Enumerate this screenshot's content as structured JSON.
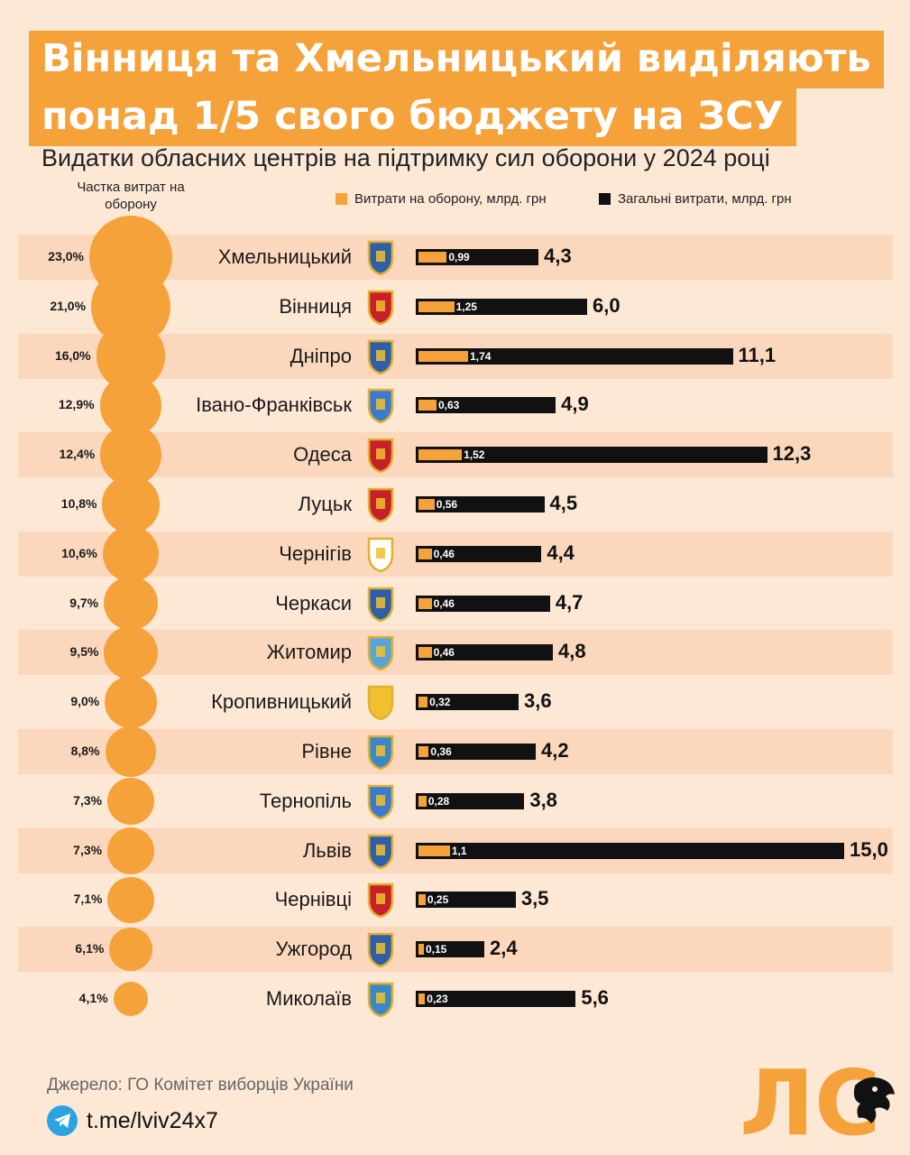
{
  "title": {
    "line1": "Вінниця та Хмельницький виділяють",
    "line2": "понад 1/5 свого бюджету на ЗСУ"
  },
  "subtitle": "Видатки обласних центрів на підтримку сил оборони у 2024 році",
  "share_header": "Частка витрат на оборону",
  "legend": {
    "defense": "Витрати на оборону, млрд. грн",
    "total": "Загальні витрати, млрд. грн"
  },
  "colors": {
    "accent": "#f5a23b",
    "dark": "#111111",
    "background": "#fde8d6",
    "row_alt": "#fbd8bd"
  },
  "chart_data": {
    "type": "bar",
    "title": "Видатки обласних центрів на підтримку сил оборони у 2024 році",
    "categories": [
      "Хмельницький",
      "Вінниця",
      "Дніпро",
      "Івано-Франківськ",
      "Одеса",
      "Луцьк",
      "Чернігів",
      "Черкаси",
      "Житомир",
      "Кропивницький",
      "Рівне",
      "Тернопіль",
      "Львів",
      "Чернівці",
      "Ужгород",
      "Миколаїв"
    ],
    "share_labels": [
      "23,0%",
      "21,0%",
      "16,0%",
      "12,9%",
      "12,4%",
      "10,8%",
      "10,6%",
      "9,7%",
      "9,5%",
      "9,0%",
      "8,8%",
      "7,3%",
      "7,3%",
      "7,1%",
      "6,1%",
      "4,1%"
    ],
    "share_values": [
      23.0,
      21.0,
      16.0,
      12.9,
      12.4,
      10.8,
      10.6,
      9.7,
      9.5,
      9.0,
      8.8,
      7.3,
      7.3,
      7.1,
      6.1,
      4.1
    ],
    "series": [
      {
        "name": "Витрати на оборону, млрд. грн",
        "values": [
          0.99,
          1.25,
          1.74,
          0.63,
          1.52,
          0.56,
          0.46,
          0.46,
          0.46,
          0.32,
          0.36,
          0.28,
          1.1,
          0.25,
          0.15,
          0.23
        ],
        "labels": [
          "0,99",
          "1,25",
          "1,74",
          "0,63",
          "1,52",
          "0,56",
          "0,46",
          "0,46",
          "0,46",
          "0,32",
          "0,36",
          "0,28",
          "1,1",
          "0,25",
          "0,15",
          "0,23"
        ]
      },
      {
        "name": "Загальні витрати, млрд. грн",
        "values": [
          4.3,
          6.0,
          11.1,
          4.9,
          12.3,
          4.5,
          4.4,
          4.7,
          4.8,
          3.6,
          4.2,
          3.8,
          15.0,
          3.5,
          2.4,
          5.6
        ],
        "labels": [
          "4,3",
          "6,0",
          "11,1",
          "4,9",
          "12,3",
          "4,5",
          "4,4",
          "4,7",
          "4,8",
          "3,6",
          "4,2",
          "3,8",
          "15,0",
          "3,5",
          "2,4",
          "5,6"
        ]
      }
    ],
    "xlim": [
      0,
      15
    ]
  },
  "footer": {
    "source": "Джерело: ГО Комітет виборців України",
    "link": "t.me/lviv24x7",
    "logo_text": "ЛС"
  }
}
